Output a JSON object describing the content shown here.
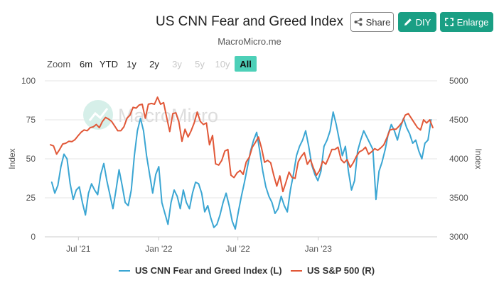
{
  "header": {
    "title": "US CNN Fear and Greed Index",
    "subtitle": "MacroMicro.me",
    "watermark": "MacroMicro"
  },
  "actions": {
    "share_label": "Share",
    "diy_label": "DIY",
    "enlarge_label": "Enlarge"
  },
  "zoom": {
    "label": "Zoom",
    "options": [
      "6m",
      "YTD",
      "1y",
      "2y",
      "3y",
      "5y",
      "10y",
      "All"
    ],
    "disabled": [
      "3y",
      "5y",
      "10y"
    ],
    "selected": "All"
  },
  "colors": {
    "fear_greed": "#3ba6d3",
    "sp500": "#e15838",
    "accent": "#1a9f84",
    "zoom_active": "#4dd0b8"
  },
  "chart_data": {
    "type": "line",
    "xlabel": "",
    "x_ticks": [
      "Jul '21",
      "Jan '22",
      "Jul '22",
      "Jan '23"
    ],
    "x_range": [
      "2021-04-15",
      "2023-09-30"
    ],
    "y_left": {
      "label": "Index",
      "range": [
        0,
        100
      ],
      "ticks": [
        0,
        25,
        50,
        75,
        100
      ]
    },
    "y_right": {
      "label": "Index",
      "range": [
        3000,
        5000
      ],
      "ticks": [
        3000,
        3500,
        4000,
        4500,
        5000
      ]
    },
    "grid": true,
    "legend_position": "bottom",
    "series": [
      {
        "name": "US CNN Fear and Greed Index (L)",
        "axis": "left",
        "points": [
          [
            "2021-05-01",
            35
          ],
          [
            "2021-05-08",
            28
          ],
          [
            "2021-05-15",
            33
          ],
          [
            "2021-05-22",
            45
          ],
          [
            "2021-05-29",
            53
          ],
          [
            "2021-06-05",
            50
          ],
          [
            "2021-06-12",
            34
          ],
          [
            "2021-06-19",
            24
          ],
          [
            "2021-06-26",
            30
          ],
          [
            "2021-07-03",
            32
          ],
          [
            "2021-07-10",
            22
          ],
          [
            "2021-07-17",
            14
          ],
          [
            "2021-07-24",
            28
          ],
          [
            "2021-07-31",
            34
          ],
          [
            "2021-08-07",
            30
          ],
          [
            "2021-08-14",
            27
          ],
          [
            "2021-08-21",
            40
          ],
          [
            "2021-08-28",
            47
          ],
          [
            "2021-09-04",
            36
          ],
          [
            "2021-09-11",
            27
          ],
          [
            "2021-09-18",
            18
          ],
          [
            "2021-09-25",
            30
          ],
          [
            "2021-10-02",
            43
          ],
          [
            "2021-10-09",
            33
          ],
          [
            "2021-10-16",
            22
          ],
          [
            "2021-10-23",
            20
          ],
          [
            "2021-10-30",
            30
          ],
          [
            "2021-11-06",
            52
          ],
          [
            "2021-11-13",
            68
          ],
          [
            "2021-11-20",
            76
          ],
          [
            "2021-11-27",
            68
          ],
          [
            "2021-12-04",
            52
          ],
          [
            "2021-12-11",
            40
          ],
          [
            "2021-12-18",
            28
          ],
          [
            "2021-12-25",
            40
          ],
          [
            "2022-01-01",
            45
          ],
          [
            "2022-01-08",
            22
          ],
          [
            "2022-01-15",
            15
          ],
          [
            "2022-01-22",
            8
          ],
          [
            "2022-01-29",
            22
          ],
          [
            "2022-02-05",
            30
          ],
          [
            "2022-02-12",
            26
          ],
          [
            "2022-02-19",
            18
          ],
          [
            "2022-02-26",
            30
          ],
          [
            "2022-03-05",
            22
          ],
          [
            "2022-03-12",
            18
          ],
          [
            "2022-03-19",
            28
          ],
          [
            "2022-03-26",
            35
          ],
          [
            "2022-04-02",
            34
          ],
          [
            "2022-04-09",
            28
          ],
          [
            "2022-04-16",
            16
          ],
          [
            "2022-04-23",
            20
          ],
          [
            "2022-04-30",
            12
          ],
          [
            "2022-05-07",
            6
          ],
          [
            "2022-05-14",
            8
          ],
          [
            "2022-05-21",
            14
          ],
          [
            "2022-05-28",
            22
          ],
          [
            "2022-06-04",
            28
          ],
          [
            "2022-06-11",
            20
          ],
          [
            "2022-06-18",
            10
          ],
          [
            "2022-06-25",
            5
          ],
          [
            "2022-07-02",
            16
          ],
          [
            "2022-07-09",
            26
          ],
          [
            "2022-07-16",
            35
          ],
          [
            "2022-07-23",
            45
          ],
          [
            "2022-07-30",
            55
          ],
          [
            "2022-08-06",
            62
          ],
          [
            "2022-08-13",
            67
          ],
          [
            "2022-08-20",
            55
          ],
          [
            "2022-08-27",
            42
          ],
          [
            "2022-09-03",
            32
          ],
          [
            "2022-09-10",
            26
          ],
          [
            "2022-09-17",
            22
          ],
          [
            "2022-09-24",
            15
          ],
          [
            "2022-10-01",
            18
          ],
          [
            "2022-10-08",
            26
          ],
          [
            "2022-10-15",
            20
          ],
          [
            "2022-10-22",
            16
          ],
          [
            "2022-10-29",
            30
          ],
          [
            "2022-11-05",
            40
          ],
          [
            "2022-11-12",
            52
          ],
          [
            "2022-11-19",
            58
          ],
          [
            "2022-11-26",
            62
          ],
          [
            "2022-12-03",
            68
          ],
          [
            "2022-12-10",
            58
          ],
          [
            "2022-12-17",
            46
          ],
          [
            "2022-12-24",
            40
          ],
          [
            "2022-12-31",
            36
          ],
          [
            "2023-01-07",
            42
          ],
          [
            "2023-01-14",
            58
          ],
          [
            "2023-01-21",
            62
          ],
          [
            "2023-01-28",
            68
          ],
          [
            "2023-02-04",
            80
          ],
          [
            "2023-02-11",
            72
          ],
          [
            "2023-02-18",
            62
          ],
          [
            "2023-02-25",
            52
          ],
          [
            "2023-03-04",
            58
          ],
          [
            "2023-03-11",
            42
          ],
          [
            "2023-03-18",
            30
          ],
          [
            "2023-03-25",
            36
          ],
          [
            "2023-04-01",
            55
          ],
          [
            "2023-04-08",
            62
          ],
          [
            "2023-04-15",
            68
          ],
          [
            "2023-04-22",
            64
          ],
          [
            "2023-04-29",
            60
          ],
          [
            "2023-05-06",
            56
          ],
          [
            "2023-05-13",
            24
          ],
          [
            "2023-05-20",
            42
          ],
          [
            "2023-05-27",
            48
          ],
          [
            "2023-06-03",
            56
          ],
          [
            "2023-06-10",
            66
          ],
          [
            "2023-06-17",
            72
          ],
          [
            "2023-06-24",
            68
          ],
          [
            "2023-07-01",
            62
          ],
          [
            "2023-07-08",
            70
          ],
          [
            "2023-07-15",
            76
          ],
          [
            "2023-07-22",
            70
          ],
          [
            "2023-07-29",
            66
          ],
          [
            "2023-08-05",
            60
          ],
          [
            "2023-08-12",
            62
          ],
          [
            "2023-08-19",
            55
          ],
          [
            "2023-08-26",
            50
          ],
          [
            "2023-09-02",
            60
          ],
          [
            "2023-09-09",
            62
          ],
          [
            "2023-09-16",
            75
          ]
        ]
      },
      {
        "name": "US S&P 500 (R)",
        "axis": "right",
        "points": [
          [
            "2021-04-28",
            4180
          ],
          [
            "2021-05-05",
            4165
          ],
          [
            "2021-05-12",
            4060
          ],
          [
            "2021-05-19",
            4120
          ],
          [
            "2021-05-26",
            4190
          ],
          [
            "2021-06-02",
            4200
          ],
          [
            "2021-06-09",
            4225
          ],
          [
            "2021-06-16",
            4220
          ],
          [
            "2021-06-23",
            4245
          ],
          [
            "2021-06-30",
            4295
          ],
          [
            "2021-07-07",
            4340
          ],
          [
            "2021-07-14",
            4370
          ],
          [
            "2021-07-21",
            4360
          ],
          [
            "2021-07-28",
            4400
          ],
          [
            "2021-08-04",
            4410
          ],
          [
            "2021-08-11",
            4440
          ],
          [
            "2021-08-18",
            4400
          ],
          [
            "2021-08-25",
            4480
          ],
          [
            "2021-09-01",
            4530
          ],
          [
            "2021-09-08",
            4510
          ],
          [
            "2021-09-15",
            4480
          ],
          [
            "2021-09-22",
            4420
          ],
          [
            "2021-09-29",
            4360
          ],
          [
            "2021-10-06",
            4360
          ],
          [
            "2021-10-13",
            4410
          ],
          [
            "2021-10-20",
            4520
          ],
          [
            "2021-10-27",
            4560
          ],
          [
            "2021-11-03",
            4660
          ],
          [
            "2021-11-10",
            4650
          ],
          [
            "2021-11-17",
            4690
          ],
          [
            "2021-11-24",
            4700
          ],
          [
            "2021-12-01",
            4520
          ],
          [
            "2021-12-08",
            4700
          ],
          [
            "2021-12-15",
            4710
          ],
          [
            "2021-12-22",
            4700
          ],
          [
            "2021-12-29",
            4790
          ],
          [
            "2022-01-05",
            4700
          ],
          [
            "2022-01-12",
            4720
          ],
          [
            "2022-01-19",
            4530
          ],
          [
            "2022-01-26",
            4350
          ],
          [
            "2022-02-02",
            4580
          ],
          [
            "2022-02-09",
            4590
          ],
          [
            "2022-02-16",
            4470
          ],
          [
            "2022-02-23",
            4225
          ],
          [
            "2022-03-02",
            4380
          ],
          [
            "2022-03-09",
            4280
          ],
          [
            "2022-03-16",
            4360
          ],
          [
            "2022-03-23",
            4460
          ],
          [
            "2022-03-30",
            4600
          ],
          [
            "2022-04-06",
            4480
          ],
          [
            "2022-04-13",
            4440
          ],
          [
            "2022-04-20",
            4460
          ],
          [
            "2022-04-27",
            4180
          ],
          [
            "2022-05-04",
            4300
          ],
          [
            "2022-05-11",
            3935
          ],
          [
            "2022-05-18",
            3920
          ],
          [
            "2022-05-25",
            3980
          ],
          [
            "2022-06-01",
            4100
          ],
          [
            "2022-06-08",
            4120
          ],
          [
            "2022-06-15",
            3790
          ],
          [
            "2022-06-22",
            3760
          ],
          [
            "2022-06-29",
            3820
          ],
          [
            "2022-07-06",
            3850
          ],
          [
            "2022-07-13",
            3800
          ],
          [
            "2022-07-20",
            3960
          ],
          [
            "2022-07-27",
            4020
          ],
          [
            "2022-08-03",
            4150
          ],
          [
            "2022-08-10",
            4210
          ],
          [
            "2022-08-17",
            4280
          ],
          [
            "2022-08-24",
            4140
          ],
          [
            "2022-08-31",
            3955
          ],
          [
            "2022-09-07",
            3980
          ],
          [
            "2022-09-14",
            3950
          ],
          [
            "2022-09-21",
            3790
          ],
          [
            "2022-09-28",
            3650
          ],
          [
            "2022-10-05",
            3780
          ],
          [
            "2022-10-12",
            3580
          ],
          [
            "2022-10-19",
            3700
          ],
          [
            "2022-10-26",
            3830
          ],
          [
            "2022-11-02",
            3760
          ],
          [
            "2022-11-09",
            3750
          ],
          [
            "2022-11-16",
            3960
          ],
          [
            "2022-11-23",
            4030
          ],
          [
            "2022-11-30",
            4080
          ],
          [
            "2022-12-07",
            3930
          ],
          [
            "2022-12-14",
            3990
          ],
          [
            "2022-12-21",
            3880
          ],
          [
            "2022-12-28",
            3790
          ],
          [
            "2023-01-04",
            3850
          ],
          [
            "2023-01-11",
            3970
          ],
          [
            "2023-01-18",
            3930
          ],
          [
            "2023-01-25",
            4020
          ],
          [
            "2023-02-01",
            4120
          ],
          [
            "2023-02-08",
            4120
          ],
          [
            "2023-02-15",
            4150
          ],
          [
            "2023-02-22",
            3990
          ],
          [
            "2023-03-01",
            3950
          ],
          [
            "2023-03-08",
            3990
          ],
          [
            "2023-03-15",
            3890
          ],
          [
            "2023-03-22",
            3950
          ],
          [
            "2023-03-29",
            4030
          ],
          [
            "2023-04-05",
            4090
          ],
          [
            "2023-04-12",
            4110
          ],
          [
            "2023-04-19",
            4150
          ],
          [
            "2023-04-26",
            4060
          ],
          [
            "2023-05-03",
            4090
          ],
          [
            "2023-05-10",
            4130
          ],
          [
            "2023-05-17",
            4110
          ],
          [
            "2023-05-24",
            4140
          ],
          [
            "2023-05-31",
            4180
          ],
          [
            "2023-06-07",
            4270
          ],
          [
            "2023-06-14",
            4370
          ],
          [
            "2023-06-21",
            4380
          ],
          [
            "2023-06-28",
            4380
          ],
          [
            "2023-07-05",
            4420
          ],
          [
            "2023-07-12",
            4470
          ],
          [
            "2023-07-19",
            4560
          ],
          [
            "2023-07-26",
            4580
          ],
          [
            "2023-08-02",
            4520
          ],
          [
            "2023-08-09",
            4460
          ],
          [
            "2023-08-16",
            4400
          ],
          [
            "2023-08-23",
            4370
          ],
          [
            "2023-08-30",
            4500
          ],
          [
            "2023-09-06",
            4460
          ],
          [
            "2023-09-13",
            4500
          ],
          [
            "2023-09-20",
            4400
          ]
        ]
      }
    ]
  }
}
